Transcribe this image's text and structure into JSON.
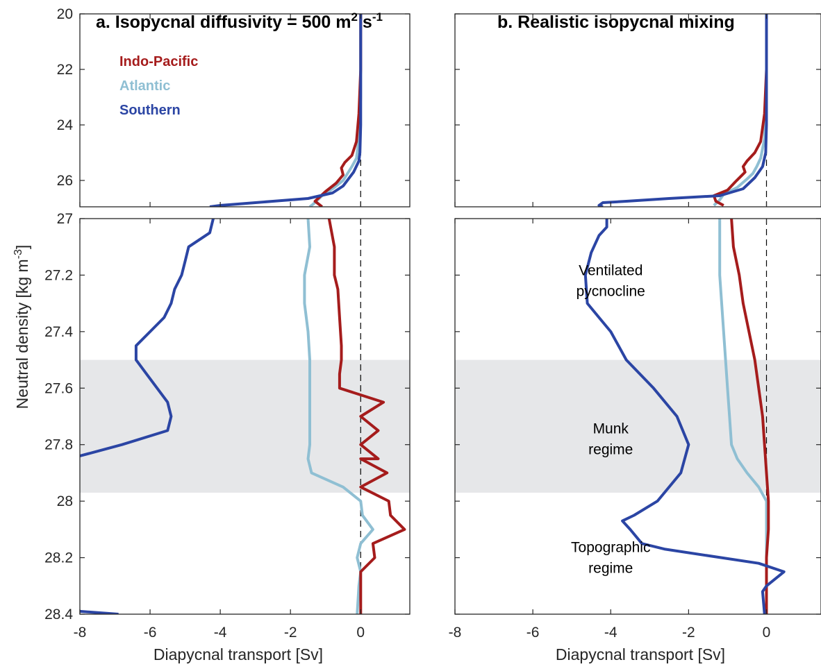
{
  "figure": {
    "panel_a_title": "a.  Isopycnal diffusivity = 500 m",
    "panel_a_title_sup1": "2",
    "panel_a_title_mid": " s",
    "panel_a_title_sup2": "-1",
    "panel_b_title": "b.  Realistic isopycnal mixing",
    "ylabel": "Neutral density [kg m",
    "ylabel_sup": "-3",
    "ylabel_end": "]",
    "xlabel": "Diapycnal transport [Sv]"
  },
  "colors": {
    "indo_pacific": "#a51c1c",
    "atlantic": "#8fbfd3",
    "southern": "#2b45a4",
    "shade": "#e6e7e9",
    "axis": "#262626"
  },
  "chart_data": [
    {
      "type": "line",
      "title": "a.  Isopycnal diffusivity = 500 m2 s-1",
      "xlabel": "Diapycnal transport [Sv]",
      "ylabel": "Neutral density [kg m-3]",
      "xlim": [
        -8,
        1.4
      ],
      "xticks": [
        "-8",
        "-6",
        "-4",
        "-2",
        "0"
      ],
      "top": {
        "ylim": [
          20,
          26.95
        ],
        "yticks": [
          "20",
          "22",
          "24",
          "26"
        ],
        "series": [
          {
            "name": "Indo-Pacific",
            "color": "indo_pacific",
            "points": [
              [
                0,
                20
              ],
              [
                0,
                22
              ],
              [
                -0.05,
                23.6
              ],
              [
                -0.12,
                24.6
              ],
              [
                -0.25,
                25.1
              ],
              [
                -0.45,
                25.35
              ],
              [
                -0.55,
                25.55
              ],
              [
                -0.5,
                25.8
              ],
              [
                -0.7,
                26.1
              ],
              [
                -1.0,
                26.4
              ],
              [
                -1.3,
                26.75
              ],
              [
                -1.1,
                26.95
              ]
            ]
          },
          {
            "name": "Atlantic",
            "color": "atlantic",
            "points": [
              [
                0,
                20
              ],
              [
                0,
                23
              ],
              [
                -0.05,
                24.5
              ],
              [
                -0.12,
                25.2
              ],
              [
                -0.25,
                25.5
              ],
              [
                -0.35,
                25.7
              ],
              [
                -0.5,
                26.0
              ],
              [
                -0.8,
                26.3
              ],
              [
                -1.1,
                26.55
              ],
              [
                -1.35,
                26.85
              ],
              [
                -1.45,
                26.95
              ]
            ]
          },
          {
            "name": "Southern",
            "color": "southern",
            "points": [
              [
                0,
                20
              ],
              [
                0,
                24
              ],
              [
                -0.02,
                25.0
              ],
              [
                -0.05,
                25.3
              ],
              [
                -0.2,
                25.7
              ],
              [
                -0.5,
                26.2
              ],
              [
                -0.8,
                26.45
              ],
              [
                -1.5,
                26.65
              ],
              [
                -2.5,
                26.75
              ],
              [
                -3.5,
                26.85
              ],
              [
                -4.0,
                26.9
              ],
              [
                -4.3,
                26.95
              ]
            ]
          }
        ]
      },
      "bottom": {
        "ylim": [
          27,
          28.4
        ],
        "yticks": [
          "27",
          "27.2",
          "27.4",
          "27.6",
          "27.8",
          "28",
          "28.2",
          "28.4"
        ],
        "shaded_range": [
          27.5,
          27.97
        ],
        "series": [
          {
            "name": "Indo-Pacific",
            "color": "indo_pacific",
            "points": [
              [
                -0.9,
                27.0
              ],
              [
                -0.75,
                27.1
              ],
              [
                -0.75,
                27.2
              ],
              [
                -0.65,
                27.25
              ],
              [
                -0.6,
                27.35
              ],
              [
                -0.55,
                27.45
              ],
              [
                -0.55,
                27.5
              ],
              [
                -0.6,
                27.55
              ],
              [
                -0.6,
                27.6
              ],
              [
                0.65,
                27.65
              ],
              [
                0.0,
                27.7
              ],
              [
                0.5,
                27.75
              ],
              [
                0.0,
                27.8
              ],
              [
                0.5,
                27.85
              ],
              [
                0.0,
                27.85
              ],
              [
                0.75,
                27.9
              ],
              [
                0.0,
                27.95
              ],
              [
                0.8,
                28.0
              ],
              [
                0.85,
                28.05
              ],
              [
                1.25,
                28.1
              ],
              [
                0.35,
                28.15
              ],
              [
                0.4,
                28.2
              ],
              [
                0.0,
                28.25
              ],
              [
                0.0,
                28.3
              ],
              [
                0.0,
                28.4
              ]
            ]
          },
          {
            "name": "Atlantic",
            "color": "atlantic",
            "points": [
              [
                -1.5,
                27.0
              ],
              [
                -1.45,
                27.1
              ],
              [
                -1.6,
                27.2
              ],
              [
                -1.6,
                27.3
              ],
              [
                -1.5,
                27.4
              ],
              [
                -1.45,
                27.5
              ],
              [
                -1.45,
                27.6
              ],
              [
                -1.45,
                27.7
              ],
              [
                -1.45,
                27.8
              ],
              [
                -1.5,
                27.85
              ],
              [
                -1.4,
                27.9
              ],
              [
                -0.5,
                27.95
              ],
              [
                0.0,
                28.0
              ],
              [
                0.05,
                28.05
              ],
              [
                0.35,
                28.1
              ],
              [
                0.0,
                28.15
              ],
              [
                -0.1,
                28.2
              ],
              [
                0.0,
                28.25
              ],
              [
                -0.05,
                28.3
              ],
              [
                -0.1,
                28.4
              ]
            ]
          },
          {
            "name": "Southern",
            "color": "southern",
            "points": [
              [
                -4.2,
                27.0
              ],
              [
                -4.3,
                27.05
              ],
              [
                -4.9,
                27.1
              ],
              [
                -5.0,
                27.15
              ],
              [
                -5.1,
                27.2
              ],
              [
                -5.3,
                27.25
              ],
              [
                -5.4,
                27.3
              ],
              [
                -5.6,
                27.35
              ],
              [
                -6.0,
                27.4
              ],
              [
                -6.4,
                27.45
              ],
              [
                -6.4,
                27.5
              ],
              [
                -6.1,
                27.55
              ],
              [
                -5.8,
                27.6
              ],
              [
                -5.5,
                27.65
              ],
              [
                -5.4,
                27.7
              ],
              [
                -5.5,
                27.75
              ],
              [
                -6.8,
                27.8
              ],
              [
                -8.0,
                27.84
              ]
            ],
            "tail": [
              [
                -8.0,
                28.39
              ],
              [
                -6.9,
                28.4
              ]
            ]
          }
        ]
      },
      "legend": {
        "placement": "top-left",
        "entries": [
          {
            "label": "Indo-Pacific",
            "color": "indo_pacific"
          },
          {
            "label": "Atlantic",
            "color": "atlantic"
          },
          {
            "label": "Southern",
            "color": "southern"
          }
        ]
      },
      "zero_line": true
    },
    {
      "type": "line",
      "title": "b.  Realistic isopycnal mixing",
      "xlabel": "Diapycnal transport [Sv]",
      "xlim": [
        -8,
        1.4
      ],
      "xticks": [
        "-8",
        "-6",
        "-4",
        "-2",
        "0"
      ],
      "top": {
        "ylim": [
          20,
          26.95
        ],
        "series": [
          {
            "name": "Indo-Pacific",
            "color": "indo_pacific",
            "points": [
              [
                0,
                20
              ],
              [
                0,
                22
              ],
              [
                -0.05,
                23.6
              ],
              [
                -0.15,
                24.6
              ],
              [
                -0.3,
                25.0
              ],
              [
                -0.5,
                25.3
              ],
              [
                -0.6,
                25.5
              ],
              [
                -0.55,
                25.7
              ],
              [
                -0.8,
                26.05
              ],
              [
                -1.0,
                26.35
              ],
              [
                -1.35,
                26.55
              ],
              [
                -1.3,
                26.75
              ],
              [
                -1.1,
                26.9
              ]
            ]
          },
          {
            "name": "Atlantic",
            "color": "atlantic",
            "points": [
              [
                0,
                20
              ],
              [
                0,
                23
              ],
              [
                -0.05,
                24.5
              ],
              [
                -0.15,
                25.2
              ],
              [
                -0.25,
                25.5
              ],
              [
                -0.35,
                25.75
              ],
              [
                -0.5,
                25.95
              ],
              [
                -0.75,
                26.25
              ],
              [
                -1.1,
                26.5
              ],
              [
                -1.2,
                26.7
              ],
              [
                -1.35,
                26.9
              ]
            ]
          },
          {
            "name": "Southern",
            "color": "southern",
            "points": [
              [
                0,
                20
              ],
              [
                0,
                24
              ],
              [
                -0.02,
                25.0
              ],
              [
                -0.1,
                25.5
              ],
              [
                -0.3,
                25.9
              ],
              [
                -0.6,
                26.3
              ],
              [
                -1.2,
                26.55
              ],
              [
                -2.5,
                26.65
              ],
              [
                -3.6,
                26.75
              ],
              [
                -4.2,
                26.8
              ],
              [
                -4.3,
                26.9
              ],
              [
                -4.2,
                26.95
              ]
            ]
          }
        ]
      },
      "bottom": {
        "ylim": [
          27,
          28.4
        ],
        "shaded_range": [
          27.5,
          27.97
        ],
        "series": [
          {
            "name": "Indo-Pacific",
            "color": "indo_pacific",
            "points": [
              [
                -0.9,
                27.0
              ],
              [
                -0.85,
                27.1
              ],
              [
                -0.7,
                27.2
              ],
              [
                -0.6,
                27.3
              ],
              [
                -0.45,
                27.4
              ],
              [
                -0.3,
                27.5
              ],
              [
                -0.2,
                27.6
              ],
              [
                -0.1,
                27.7
              ],
              [
                -0.05,
                27.8
              ],
              [
                0.0,
                27.9
              ],
              [
                0.05,
                28.0
              ],
              [
                0.05,
                28.1
              ],
              [
                0.0,
                28.2
              ],
              [
                0.0,
                28.3
              ],
              [
                0.0,
                28.4
              ]
            ]
          },
          {
            "name": "Atlantic",
            "color": "atlantic",
            "points": [
              [
                -1.2,
                27.0
              ],
              [
                -1.2,
                27.1
              ],
              [
                -1.2,
                27.2
              ],
              [
                -1.15,
                27.3
              ],
              [
                -1.1,
                27.4
              ],
              [
                -1.05,
                27.5
              ],
              [
                -1.0,
                27.6
              ],
              [
                -0.95,
                27.7
              ],
              [
                -0.9,
                27.8
              ],
              [
                -0.75,
                27.85
              ],
              [
                -0.5,
                27.9
              ],
              [
                -0.2,
                27.95
              ],
              [
                0.0,
                28.0
              ],
              [
                0.0,
                28.1
              ],
              [
                0.0,
                28.2
              ],
              [
                0.0,
                28.3
              ],
              [
                0.0,
                28.4
              ]
            ]
          },
          {
            "name": "Southern",
            "color": "southern",
            "points": [
              [
                -4.1,
                27.0
              ],
              [
                -4.1,
                27.03
              ],
              [
                -4.3,
                27.06
              ],
              [
                -4.5,
                27.12
              ],
              [
                -4.65,
                27.2
              ],
              [
                -4.6,
                27.3
              ],
              [
                -4.3,
                27.35
              ],
              [
                -4.0,
                27.4
              ],
              [
                -3.6,
                27.5
              ],
              [
                -2.9,
                27.6
              ],
              [
                -2.3,
                27.7
              ],
              [
                -2.0,
                27.8
              ],
              [
                -2.2,
                27.9
              ],
              [
                -2.8,
                28.0
              ],
              [
                -3.4,
                28.05
              ],
              [
                -3.7,
                28.07
              ],
              [
                -3.5,
                28.1
              ],
              [
                -3.2,
                28.15
              ],
              [
                -2.6,
                28.17
              ],
              [
                -0.2,
                28.22
              ],
              [
                0.45,
                28.25
              ],
              [
                0.0,
                28.3
              ],
              [
                -0.1,
                28.32
              ],
              [
                -0.05,
                28.4
              ]
            ]
          }
        ]
      },
      "annotations": [
        {
          "lines": [
            "Ventilated",
            "pycnocline"
          ],
          "x": -4.0,
          "y": 27.23
        },
        {
          "lines": [
            "Munk",
            "regime"
          ],
          "x": -4.0,
          "y": 27.79
        },
        {
          "lines": [
            "Topographic",
            "regime"
          ],
          "x": -4.0,
          "y": 28.21
        }
      ],
      "zero_line": true
    }
  ]
}
